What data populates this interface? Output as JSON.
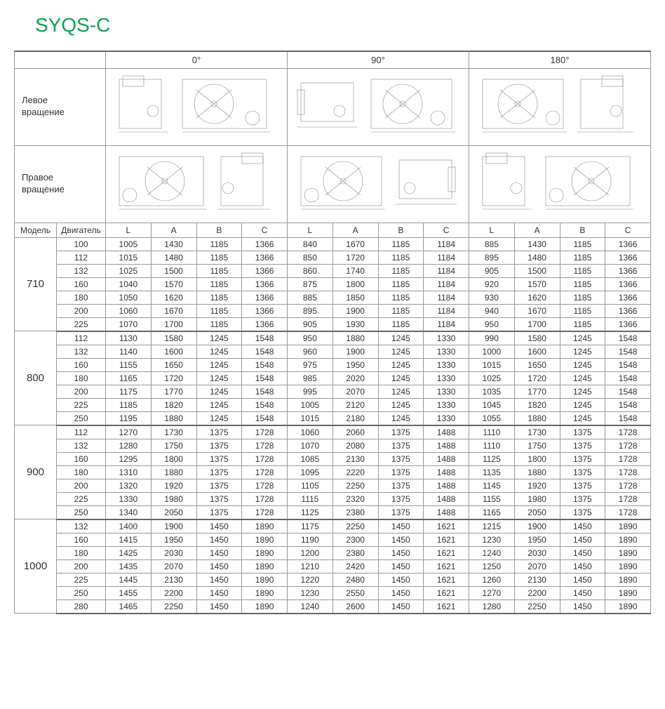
{
  "title": "SYQS-C",
  "angles": [
    "0°",
    "90°",
    "180°"
  ],
  "rotation_labels": {
    "left": "Левое\nвращение",
    "right": "Правое\nвращение"
  },
  "col_headers": {
    "model": "Модель",
    "engine": "Двигатель",
    "dims": [
      "L",
      "A",
      "B",
      "C"
    ]
  },
  "colors": {
    "title": "#00a651",
    "border": "#999999",
    "text": "#333333",
    "bg": "#ffffff"
  },
  "groups": [
    {
      "model": "710",
      "rows": [
        {
          "eng": "100",
          "d0": [
            1005,
            1430,
            1185,
            1366
          ],
          "d90": [
            840,
            1670,
            1185,
            1184
          ],
          "d180": [
            885,
            1430,
            1185,
            1366
          ]
        },
        {
          "eng": "112",
          "d0": [
            1015,
            1480,
            1185,
            1366
          ],
          "d90": [
            850,
            1720,
            1185,
            1184
          ],
          "d180": [
            895,
            1480,
            1185,
            1366
          ]
        },
        {
          "eng": "132",
          "d0": [
            1025,
            1500,
            1185,
            1366
          ],
          "d90": [
            860,
            1740,
            1185,
            1184
          ],
          "d180": [
            905,
            1500,
            1185,
            1366
          ]
        },
        {
          "eng": "160",
          "d0": [
            1040,
            1570,
            1185,
            1366
          ],
          "d90": [
            875,
            1800,
            1185,
            1184
          ],
          "d180": [
            920,
            1570,
            1185,
            1366
          ]
        },
        {
          "eng": "180",
          "d0": [
            1050,
            1620,
            1185,
            1366
          ],
          "d90": [
            885,
            1850,
            1185,
            1184
          ],
          "d180": [
            930,
            1620,
            1185,
            1366
          ]
        },
        {
          "eng": "200",
          "d0": [
            1060,
            1670,
            1185,
            1366
          ],
          "d90": [
            895,
            1900,
            1185,
            1184
          ],
          "d180": [
            940,
            1670,
            1185,
            1366
          ]
        },
        {
          "eng": "225",
          "d0": [
            1070,
            1700,
            1185,
            1366
          ],
          "d90": [
            905,
            1930,
            1185,
            1184
          ],
          "d180": [
            950,
            1700,
            1185,
            1366
          ]
        }
      ]
    },
    {
      "model": "800",
      "rows": [
        {
          "eng": "112",
          "d0": [
            1130,
            1580,
            1245,
            1548
          ],
          "d90": [
            950,
            1880,
            1245,
            1330
          ],
          "d180": [
            990,
            1580,
            1245,
            1548
          ]
        },
        {
          "eng": "132",
          "d0": [
            1140,
            1600,
            1245,
            1548
          ],
          "d90": [
            960,
            1900,
            1245,
            1330
          ],
          "d180": [
            1000,
            1600,
            1245,
            1548
          ]
        },
        {
          "eng": "160",
          "d0": [
            1155,
            1650,
            1245,
            1548
          ],
          "d90": [
            975,
            1950,
            1245,
            1330
          ],
          "d180": [
            1015,
            1650,
            1245,
            1548
          ]
        },
        {
          "eng": "180",
          "d0": [
            1165,
            1720,
            1245,
            1548
          ],
          "d90": [
            985,
            2020,
            1245,
            1330
          ],
          "d180": [
            1025,
            1720,
            1245,
            1548
          ]
        },
        {
          "eng": "200",
          "d0": [
            1175,
            1770,
            1245,
            1548
          ],
          "d90": [
            995,
            2070,
            1245,
            1330
          ],
          "d180": [
            1035,
            1770,
            1245,
            1548
          ]
        },
        {
          "eng": "225",
          "d0": [
            1185,
            1820,
            1245,
            1548
          ],
          "d90": [
            1005,
            2120,
            1245,
            1330
          ],
          "d180": [
            1045,
            1820,
            1245,
            1548
          ]
        },
        {
          "eng": "250",
          "d0": [
            1195,
            1880,
            1245,
            1548
          ],
          "d90": [
            1015,
            2180,
            1245,
            1330
          ],
          "d180": [
            1055,
            1880,
            1245,
            1548
          ]
        }
      ]
    },
    {
      "model": "900",
      "rows": [
        {
          "eng": "112",
          "d0": [
            1270,
            1730,
            1375,
            1728
          ],
          "d90": [
            1060,
            2060,
            1375,
            1488
          ],
          "d180": [
            1110,
            1730,
            1375,
            1728
          ]
        },
        {
          "eng": "132",
          "d0": [
            1280,
            1750,
            1375,
            1728
          ],
          "d90": [
            1070,
            2080,
            1375,
            1488
          ],
          "d180": [
            1110,
            1750,
            1375,
            1728
          ]
        },
        {
          "eng": "160",
          "d0": [
            1295,
            1800,
            1375,
            1728
          ],
          "d90": [
            1085,
            2130,
            1375,
            1488
          ],
          "d180": [
            1125,
            1800,
            1375,
            1728
          ]
        },
        {
          "eng": "180",
          "d0": [
            1310,
            1880,
            1375,
            1728
          ],
          "d90": [
            1095,
            2220,
            1375,
            1488
          ],
          "d180": [
            1135,
            1880,
            1375,
            1728
          ]
        },
        {
          "eng": "200",
          "d0": [
            1320,
            1920,
            1375,
            1728
          ],
          "d90": [
            1105,
            2250,
            1375,
            1488
          ],
          "d180": [
            1145,
            1920,
            1375,
            1728
          ]
        },
        {
          "eng": "225",
          "d0": [
            1330,
            1980,
            1375,
            1728
          ],
          "d90": [
            1115,
            2320,
            1375,
            1488
          ],
          "d180": [
            1155,
            1980,
            1375,
            1728
          ]
        },
        {
          "eng": "250",
          "d0": [
            1340,
            2050,
            1375,
            1728
          ],
          "d90": [
            1125,
            2380,
            1375,
            1488
          ],
          "d180": [
            1165,
            2050,
            1375,
            1728
          ]
        }
      ]
    },
    {
      "model": "1000",
      "rows": [
        {
          "eng": "132",
          "d0": [
            1400,
            1900,
            1450,
            1890
          ],
          "d90": [
            1175,
            2250,
            1450,
            1621
          ],
          "d180": [
            1215,
            1900,
            1450,
            1890
          ]
        },
        {
          "eng": "160",
          "d0": [
            1415,
            1950,
            1450,
            1890
          ],
          "d90": [
            1190,
            2300,
            1450,
            1621
          ],
          "d180": [
            1230,
            1950,
            1450,
            1890
          ]
        },
        {
          "eng": "180",
          "d0": [
            1425,
            2030,
            1450,
            1890
          ],
          "d90": [
            1200,
            2380,
            1450,
            1621
          ],
          "d180": [
            1240,
            2030,
            1450,
            1890
          ]
        },
        {
          "eng": "200",
          "d0": [
            1435,
            2070,
            1450,
            1890
          ],
          "d90": [
            1210,
            2420,
            1450,
            1621
          ],
          "d180": [
            1250,
            2070,
            1450,
            1890
          ]
        },
        {
          "eng": "225",
          "d0": [
            1445,
            2130,
            1450,
            1890
          ],
          "d90": [
            1220,
            2480,
            1450,
            1621
          ],
          "d180": [
            1260,
            2130,
            1450,
            1890
          ]
        },
        {
          "eng": "250",
          "d0": [
            1455,
            2200,
            1450,
            1890
          ],
          "d90": [
            1230,
            2550,
            1450,
            1621
          ],
          "d180": [
            1270,
            2200,
            1450,
            1890
          ]
        },
        {
          "eng": "280",
          "d0": [
            1465,
            2250,
            1450,
            1890
          ],
          "d90": [
            1240,
            2600,
            1450,
            1621
          ],
          "d180": [
            1280,
            2250,
            1450,
            1890
          ]
        }
      ]
    }
  ]
}
